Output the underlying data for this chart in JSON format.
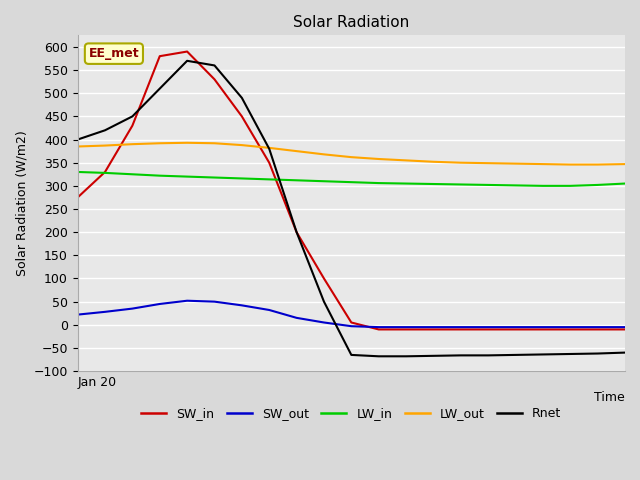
{
  "title": "Solar Radiation",
  "xlabel": "Time",
  "ylabel": "Solar Radiation (W/m2)",
  "ylim": [
    -100,
    625
  ],
  "yticks": [
    -100,
    -50,
    0,
    50,
    100,
    150,
    200,
    250,
    300,
    350,
    400,
    450,
    500,
    550,
    600
  ],
  "x_label_text": "Jan 20",
  "annotation_text": "EE_met",
  "bg_color": "#e8e8e8",
  "grid_color": "#ffffff",
  "series": {
    "SW_in": {
      "color": "#cc0000",
      "x": [
        0,
        1,
        2,
        3,
        4,
        5,
        6,
        7,
        8,
        9,
        10,
        11,
        12,
        13,
        14,
        15,
        16,
        17,
        18,
        19,
        20
      ],
      "y": [
        275,
        330,
        430,
        580,
        590,
        530,
        450,
        350,
        200,
        100,
        5,
        -10,
        -10,
        -10,
        -10,
        -10,
        -10,
        -10,
        -10,
        -10,
        -10
      ]
    },
    "SW_out": {
      "color": "#0000cc",
      "x": [
        0,
        1,
        2,
        3,
        4,
        5,
        6,
        7,
        8,
        9,
        10,
        11,
        12,
        13,
        14,
        15,
        16,
        17,
        18,
        19,
        20
      ],
      "y": [
        22,
        28,
        35,
        45,
        52,
        50,
        42,
        32,
        15,
        5,
        -3,
        -5,
        -5,
        -5,
        -5,
        -5,
        -5,
        -5,
        -5,
        -5,
        -5
      ]
    },
    "LW_in": {
      "color": "#00cc00",
      "x": [
        0,
        1,
        2,
        3,
        4,
        5,
        6,
        7,
        8,
        9,
        10,
        11,
        12,
        13,
        14,
        15,
        16,
        17,
        18,
        19,
        20
      ],
      "y": [
        330,
        328,
        325,
        322,
        320,
        318,
        316,
        314,
        312,
        310,
        308,
        306,
        305,
        304,
        303,
        302,
        301,
        300,
        300,
        302,
        305
      ]
    },
    "LW_out": {
      "color": "#ffa500",
      "x": [
        0,
        1,
        2,
        3,
        4,
        5,
        6,
        7,
        8,
        9,
        10,
        11,
        12,
        13,
        14,
        15,
        16,
        17,
        18,
        19,
        20
      ],
      "y": [
        385,
        387,
        390,
        392,
        393,
        392,
        388,
        382,
        375,
        368,
        362,
        358,
        355,
        352,
        350,
        349,
        348,
        347,
        346,
        346,
        347
      ]
    },
    "Rnet": {
      "color": "#000000",
      "x": [
        0,
        1,
        2,
        3,
        4,
        5,
        6,
        7,
        8,
        9,
        10,
        11,
        12,
        13,
        14,
        15,
        16,
        17,
        18,
        19,
        20
      ],
      "y": [
        400,
        420,
        450,
        510,
        570,
        560,
        490,
        380,
        200,
        50,
        -65,
        -68,
        -68,
        -67,
        -66,
        -66,
        -65,
        -64,
        -63,
        -62,
        -60
      ]
    }
  },
  "legend_order": [
    "SW_in",
    "SW_out",
    "LW_in",
    "LW_out",
    "Rnet"
  ]
}
